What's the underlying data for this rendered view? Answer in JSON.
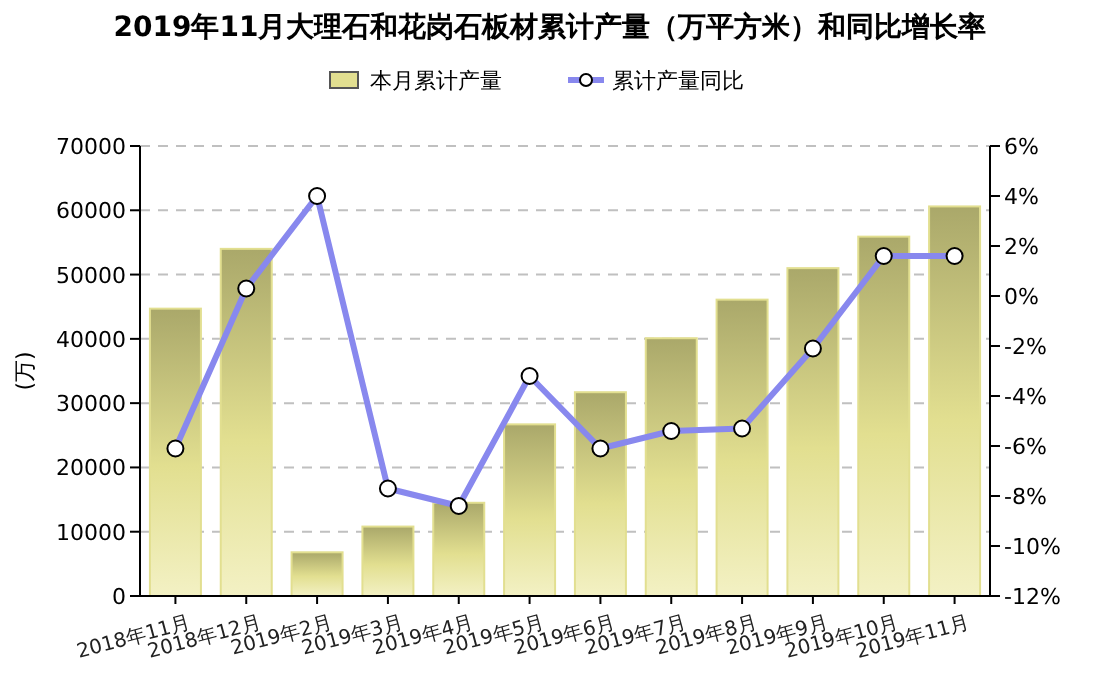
{
  "chart_data": {
    "type": "bar",
    "title": "2019年11月大理石和花岗石板材累计产量（万平方米）和同比增长率",
    "ylabel": "(万)",
    "categories": [
      "2018年11月",
      "2018年12月",
      "2019年2月",
      "2019年3月",
      "2019年4月",
      "2019年5月",
      "2019年6月",
      "2019年7月",
      "2019年8月",
      "2019年9月",
      "2019年10月",
      "2019年11月"
    ],
    "series": [
      {
        "name": "本月累计产量",
        "color": "#e2df90",
        "values": [
          44700,
          54000,
          6800,
          10800,
          14500,
          26700,
          31700,
          40100,
          46100,
          51000,
          55900,
          60600
        ]
      },
      {
        "name": "累计产量同比",
        "type": "line",
        "axis": "y2",
        "color": "#8888ee",
        "marker": "circle",
        "values": [
          -6.1,
          0.3,
          4.0,
          -7.7,
          -8.4,
          -3.2,
          -6.1,
          -5.4,
          -5.3,
          -2.1,
          1.6,
          1.6
        ]
      }
    ],
    "ylim": [
      0,
      70000
    ],
    "yticks": [
      0,
      10000,
      20000,
      30000,
      40000,
      50000,
      60000,
      70000
    ],
    "y2lim": [
      -12,
      6
    ],
    "y2ticks": [
      {
        "value": -12,
        "label": "-12%"
      },
      {
        "value": -10,
        "label": "-10%"
      },
      {
        "value": -8,
        "label": "-8%"
      },
      {
        "value": -6,
        "label": "-6%"
      },
      {
        "value": -4,
        "label": "-4%"
      },
      {
        "value": -2,
        "label": "-2%"
      },
      {
        "value": 0,
        "label": "0%"
      },
      {
        "value": 2,
        "label": "2%"
      },
      {
        "value": 4,
        "label": "4%"
      },
      {
        "value": 6,
        "label": "6%"
      }
    ],
    "grid": "y",
    "legend": "top",
    "line_style": "solid"
  }
}
